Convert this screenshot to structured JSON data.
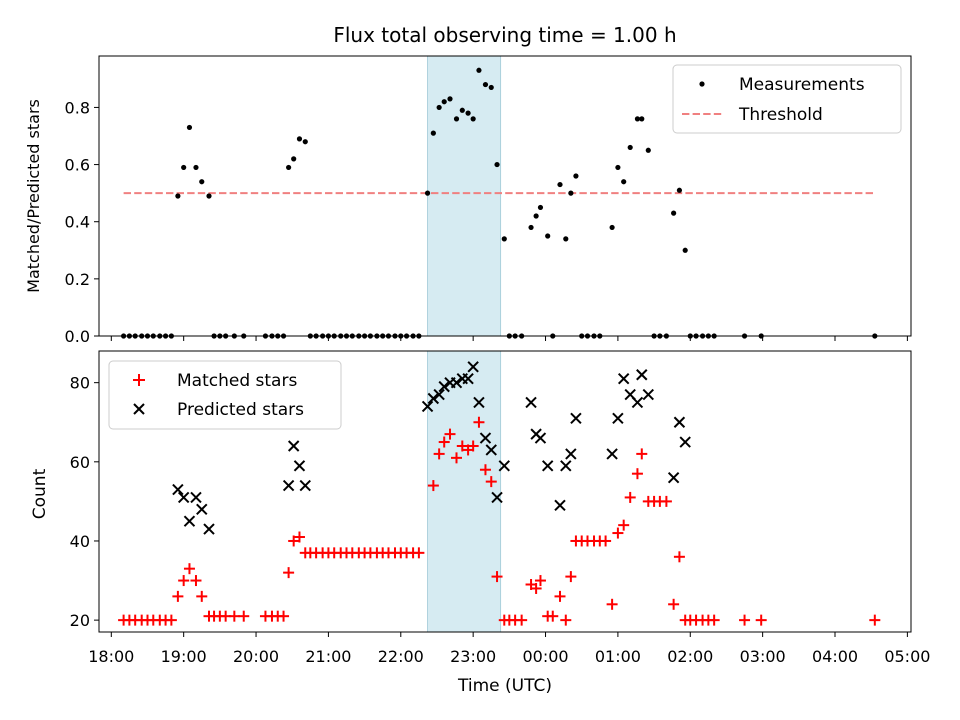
{
  "chart_data": [
    {
      "type": "scatter",
      "title": "Flux total observing time = 1.00 h",
      "xlabel": "",
      "ylabel": "Matched/Predicted stars",
      "xlim": [
        17.83,
        29.05
      ],
      "ylim": [
        0,
        0.98
      ],
      "yticks": [
        0.0,
        0.2,
        0.4,
        0.6,
        0.8
      ],
      "ytick_labels": [
        "0.0",
        "0.2",
        "0.4",
        "0.6",
        "0.8"
      ],
      "xticks": [
        18,
        19,
        20,
        21,
        22,
        23,
        24,
        25,
        26,
        27,
        28,
        29
      ],
      "highlight_span": [
        22.37,
        23.38
      ],
      "threshold": {
        "name": "Threshold",
        "y": 0.5,
        "x": [
          18.17,
          28.55
        ],
        "color": "#f08080"
      },
      "legend": [
        {
          "label": "Measurements",
          "marker": "dot"
        },
        {
          "label": "Threshold",
          "marker": "dashed-line"
        }
      ],
      "legend_position": "upper right",
      "series": [
        {
          "name": "Measurements",
          "color": "#000000",
          "points": [
            [
              18.17,
              0
            ],
            [
              18.25,
              0
            ],
            [
              18.33,
              0
            ],
            [
              18.42,
              0
            ],
            [
              18.5,
              0
            ],
            [
              18.58,
              0
            ],
            [
              18.67,
              0
            ],
            [
              18.75,
              0
            ],
            [
              18.83,
              0
            ],
            [
              18.92,
              0.49
            ],
            [
              19.0,
              0.59
            ],
            [
              19.08,
              0.73
            ],
            [
              19.17,
              0.59
            ],
            [
              19.25,
              0.54
            ],
            [
              19.35,
              0.49
            ],
            [
              19.42,
              0
            ],
            [
              19.5,
              0
            ],
            [
              19.58,
              0
            ],
            [
              19.7,
              0
            ],
            [
              19.83,
              0
            ],
            [
              20.13,
              0
            ],
            [
              20.22,
              0
            ],
            [
              20.3,
              0
            ],
            [
              20.38,
              0
            ],
            [
              20.45,
              0.59
            ],
            [
              20.52,
              0.62
            ],
            [
              20.6,
              0.69
            ],
            [
              20.68,
              0.68
            ],
            [
              20.75,
              0
            ],
            [
              20.83,
              0
            ],
            [
              20.92,
              0
            ],
            [
              21.0,
              0
            ],
            [
              21.08,
              0
            ],
            [
              21.17,
              0
            ],
            [
              21.25,
              0
            ],
            [
              21.33,
              0
            ],
            [
              21.42,
              0
            ],
            [
              21.5,
              0
            ],
            [
              21.58,
              0
            ],
            [
              21.67,
              0
            ],
            [
              21.75,
              0
            ],
            [
              21.83,
              0
            ],
            [
              21.92,
              0
            ],
            [
              22.0,
              0
            ],
            [
              22.08,
              0
            ],
            [
              22.17,
              0
            ],
            [
              22.25,
              0
            ],
            [
              22.37,
              0.5
            ],
            [
              22.45,
              0.71
            ],
            [
              22.53,
              0.8
            ],
            [
              22.6,
              0.82
            ],
            [
              22.68,
              0.83
            ],
            [
              22.77,
              0.76
            ],
            [
              22.85,
              0.79
            ],
            [
              22.93,
              0.78
            ],
            [
              23.0,
              0.76
            ],
            [
              23.08,
              0.93
            ],
            [
              23.17,
              0.88
            ],
            [
              23.25,
              0.87
            ],
            [
              23.33,
              0.6
            ],
            [
              23.43,
              0.34
            ],
            [
              23.5,
              0
            ],
            [
              23.58,
              0
            ],
            [
              23.67,
              0
            ],
            [
              23.8,
              0.38
            ],
            [
              23.87,
              0.42
            ],
            [
              23.93,
              0.45
            ],
            [
              24.03,
              0.35
            ],
            [
              24.1,
              0
            ],
            [
              24.2,
              0.53
            ],
            [
              24.28,
              0.34
            ],
            [
              24.35,
              0.5
            ],
            [
              24.42,
              0.56
            ],
            [
              24.5,
              0
            ],
            [
              24.58,
              0
            ],
            [
              24.67,
              0
            ],
            [
              24.75,
              0
            ],
            [
              24.92,
              0.38
            ],
            [
              25.0,
              0.59
            ],
            [
              25.08,
              0.54
            ],
            [
              25.17,
              0.66
            ],
            [
              25.27,
              0.76
            ],
            [
              25.33,
              0.76
            ],
            [
              25.42,
              0.65
            ],
            [
              25.5,
              0
            ],
            [
              25.58,
              0
            ],
            [
              25.67,
              0
            ],
            [
              25.77,
              0.43
            ],
            [
              25.85,
              0.51
            ],
            [
              25.93,
              0.3
            ],
            [
              26.0,
              0
            ],
            [
              26.08,
              0
            ],
            [
              26.17,
              0
            ],
            [
              26.25,
              0
            ],
            [
              26.33,
              0
            ],
            [
              26.75,
              0
            ],
            [
              26.98,
              0
            ],
            [
              28.55,
              0
            ]
          ]
        }
      ]
    },
    {
      "type": "scatter",
      "title": "",
      "xlabel": "Time (UTC)",
      "ylabel": "Count",
      "xlim": [
        17.83,
        29.05
      ],
      "ylim": [
        17,
        88
      ],
      "yticks": [
        20,
        40,
        60,
        80
      ],
      "ytick_labels": [
        "20",
        "40",
        "60",
        "80"
      ],
      "xticks": [
        18,
        19,
        20,
        21,
        22,
        23,
        24,
        25,
        26,
        27,
        28,
        29
      ],
      "xtick_labels": [
        "18:00",
        "19:00",
        "20:00",
        "21:00",
        "22:00",
        "23:00",
        "00:00",
        "01:00",
        "02:00",
        "03:00",
        "04:00",
        "05:00"
      ],
      "highlight_span": [
        22.37,
        23.38
      ],
      "legend": [
        {
          "label": "Matched stars",
          "marker": "plus"
        },
        {
          "label": "Predicted stars",
          "marker": "x"
        }
      ],
      "legend_position": "upper left",
      "series": [
        {
          "name": "Matched stars",
          "marker": "plus",
          "color": "#ff0000",
          "points": [
            [
              18.17,
              20
            ],
            [
              18.25,
              20
            ],
            [
              18.33,
              20
            ],
            [
              18.42,
              20
            ],
            [
              18.5,
              20
            ],
            [
              18.58,
              20
            ],
            [
              18.67,
              20
            ],
            [
              18.75,
              20
            ],
            [
              18.83,
              20
            ],
            [
              18.92,
              26
            ],
            [
              19.0,
              30
            ],
            [
              19.08,
              33
            ],
            [
              19.17,
              30
            ],
            [
              19.25,
              26
            ],
            [
              19.35,
              21
            ],
            [
              19.42,
              21
            ],
            [
              19.5,
              21
            ],
            [
              19.58,
              21
            ],
            [
              19.7,
              21
            ],
            [
              19.83,
              21
            ],
            [
              20.13,
              21
            ],
            [
              20.22,
              21
            ],
            [
              20.3,
              21
            ],
            [
              20.38,
              21
            ],
            [
              20.45,
              32
            ],
            [
              20.52,
              40
            ],
            [
              20.6,
              41
            ],
            [
              20.68,
              37
            ],
            [
              20.75,
              37
            ],
            [
              20.83,
              37
            ],
            [
              20.92,
              37
            ],
            [
              21.0,
              37
            ],
            [
              21.08,
              37
            ],
            [
              21.17,
              37
            ],
            [
              21.25,
              37
            ],
            [
              21.33,
              37
            ],
            [
              21.42,
              37
            ],
            [
              21.5,
              37
            ],
            [
              21.58,
              37
            ],
            [
              21.67,
              37
            ],
            [
              21.75,
              37
            ],
            [
              21.83,
              37
            ],
            [
              21.92,
              37
            ],
            [
              22.0,
              37
            ],
            [
              22.08,
              37
            ],
            [
              22.17,
              37
            ],
            [
              22.25,
              37
            ],
            [
              22.45,
              54
            ],
            [
              22.53,
              62
            ],
            [
              22.6,
              65
            ],
            [
              22.68,
              67
            ],
            [
              22.77,
              61
            ],
            [
              22.85,
              64
            ],
            [
              22.93,
              63
            ],
            [
              23.0,
              64
            ],
            [
              23.08,
              70
            ],
            [
              23.17,
              58
            ],
            [
              23.25,
              55
            ],
            [
              23.33,
              31
            ],
            [
              23.43,
              20
            ],
            [
              23.5,
              20
            ],
            [
              23.58,
              20
            ],
            [
              23.67,
              20
            ],
            [
              23.8,
              29
            ],
            [
              23.87,
              28
            ],
            [
              23.93,
              30
            ],
            [
              24.03,
              21
            ],
            [
              24.1,
              21
            ],
            [
              24.2,
              26
            ],
            [
              24.28,
              20
            ],
            [
              24.35,
              31
            ],
            [
              24.42,
              40
            ],
            [
              24.5,
              40
            ],
            [
              24.58,
              40
            ],
            [
              24.67,
              40
            ],
            [
              24.75,
              40
            ],
            [
              24.83,
              40
            ],
            [
              24.92,
              24
            ],
            [
              25.0,
              42
            ],
            [
              25.08,
              44
            ],
            [
              25.17,
              51
            ],
            [
              25.27,
              57
            ],
            [
              25.33,
              62
            ],
            [
              25.42,
              50
            ],
            [
              25.5,
              50
            ],
            [
              25.58,
              50
            ],
            [
              25.67,
              50
            ],
            [
              25.77,
              24
            ],
            [
              25.85,
              36
            ],
            [
              25.93,
              20
            ],
            [
              26.0,
              20
            ],
            [
              26.08,
              20
            ],
            [
              26.17,
              20
            ],
            [
              26.25,
              20
            ],
            [
              26.33,
              20
            ],
            [
              26.75,
              20
            ],
            [
              26.98,
              20
            ],
            [
              28.55,
              20
            ]
          ]
        },
        {
          "name": "Predicted stars",
          "marker": "x",
          "color": "#000000",
          "points": [
            [
              18.92,
              53
            ],
            [
              19.0,
              51
            ],
            [
              19.08,
              45
            ],
            [
              19.17,
              51
            ],
            [
              19.25,
              48
            ],
            [
              19.35,
              43
            ],
            [
              20.45,
              54
            ],
            [
              20.52,
              64
            ],
            [
              20.6,
              59
            ],
            [
              20.68,
              54
            ],
            [
              22.37,
              74
            ],
            [
              22.45,
              76
            ],
            [
              22.53,
              77
            ],
            [
              22.6,
              79
            ],
            [
              22.68,
              80
            ],
            [
              22.77,
              80
            ],
            [
              22.85,
              81
            ],
            [
              22.93,
              81
            ],
            [
              23.0,
              84
            ],
            [
              23.08,
              75
            ],
            [
              23.17,
              66
            ],
            [
              23.25,
              63
            ],
            [
              23.33,
              51
            ],
            [
              23.43,
              59
            ],
            [
              23.8,
              75
            ],
            [
              23.87,
              67
            ],
            [
              23.93,
              66
            ],
            [
              24.03,
              59
            ],
            [
              24.2,
              49
            ],
            [
              24.28,
              59
            ],
            [
              24.35,
              62
            ],
            [
              24.42,
              71
            ],
            [
              24.92,
              62
            ],
            [
              25.0,
              71
            ],
            [
              25.08,
              81
            ],
            [
              25.17,
              77
            ],
            [
              25.27,
              75
            ],
            [
              25.33,
              82
            ],
            [
              25.42,
              77
            ],
            [
              25.77,
              56
            ],
            [
              25.85,
              70
            ],
            [
              25.93,
              65
            ]
          ]
        }
      ]
    }
  ]
}
